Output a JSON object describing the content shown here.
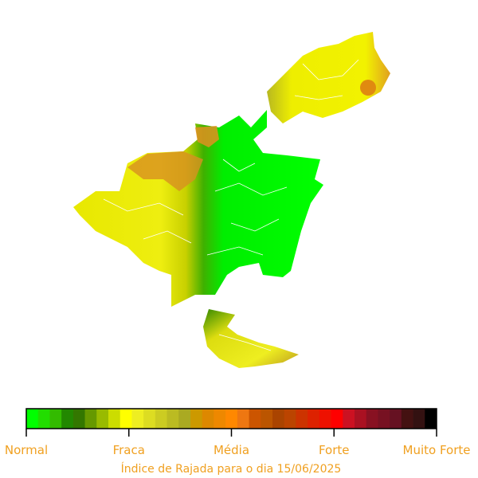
{
  "title": "Índice de Rajada para o dia 15/06/2025",
  "colorbar": {
    "colors": [
      "#00ff00",
      "#22dd00",
      "#33bb00",
      "#228800",
      "#337700",
      "#669900",
      "#99bb00",
      "#ccdd00",
      "#ffff00",
      "#eeee22",
      "#dddd22",
      "#cccc22",
      "#bbbb22",
      "#aaaa22",
      "#cc9900",
      "#dd8800",
      "#ee8800",
      "#ff8800",
      "#ee7711",
      "#cc5500",
      "#bb5500",
      "#aa4400",
      "#bb4400",
      "#cc3300",
      "#dd2200",
      "#ee1100",
      "#ff0000",
      "#cc1122",
      "#aa1122",
      "#881122",
      "#771122",
      "#661122",
      "#441111",
      "#331111",
      "#000000"
    ],
    "labels": [
      "Normal",
      "Fraca",
      "Média",
      "Forte",
      "Muito Forte"
    ]
  }
}
